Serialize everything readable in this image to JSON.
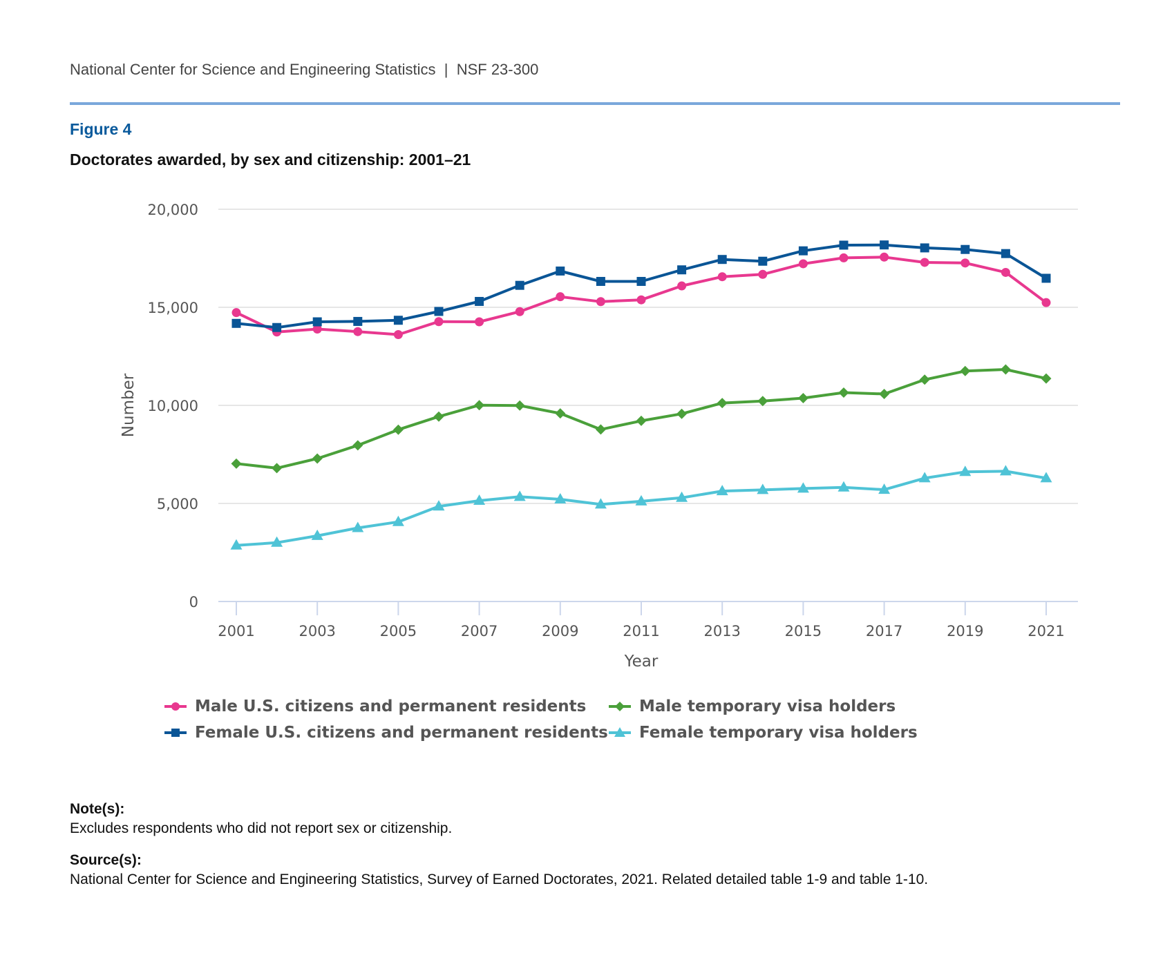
{
  "header": {
    "org": "National Center for Science and Engineering Statistics",
    "separator": "|",
    "report": "NSF 23-300"
  },
  "figure": {
    "label": "Figure 4",
    "title": "Doctorates awarded, by sex and citizenship: 2001–21"
  },
  "colors": {
    "rule": "#7aa7db",
    "figure_label": "#0a5a9c",
    "grid": "#e6e6e6",
    "axis": "#ccd6eb"
  },
  "chart_data": {
    "type": "line",
    "title": "Doctorates awarded, by sex and citizenship: 2001–21",
    "xlabel": "Year",
    "ylabel": "Number",
    "ylim": [
      0,
      20000
    ],
    "yticks": [
      0,
      5000,
      10000,
      15000,
      20000
    ],
    "ytick_labels": [
      "0",
      "5,000",
      "10,000",
      "15,000",
      "20,000"
    ],
    "xlim": [
      2001,
      2021
    ],
    "xticks": [
      2001,
      2003,
      2005,
      2007,
      2009,
      2011,
      2013,
      2015,
      2017,
      2019,
      2021
    ],
    "xtick_labels": [
      "2001",
      "2003",
      "2005",
      "2007",
      "2009",
      "2011",
      "2013",
      "2015",
      "2017",
      "2019",
      "2021"
    ],
    "grid": true,
    "legend_position": "bottom",
    "x": [
      2001,
      2002,
      2003,
      2004,
      2005,
      2006,
      2007,
      2008,
      2009,
      2010,
      2011,
      2012,
      2013,
      2014,
      2015,
      2016,
      2017,
      2018,
      2019,
      2020,
      2021
    ],
    "series": [
      {
        "name": "Male U.S. citizens and permanent residents",
        "color": "#e8388f",
        "marker": "circle",
        "values": [
          14730,
          13740,
          13890,
          13760,
          13610,
          14270,
          14260,
          14780,
          15540,
          15290,
          15380,
          16090,
          16560,
          16680,
          17220,
          17520,
          17560,
          17290,
          17260,
          16780,
          15240
        ]
      },
      {
        "name": "Female U.S. citizens and permanent residents",
        "color": "#0a5596",
        "marker": "square",
        "values": [
          14180,
          13970,
          14260,
          14280,
          14340,
          14790,
          15300,
          16120,
          16850,
          16320,
          16320,
          16910,
          17440,
          17350,
          17880,
          18170,
          18180,
          18030,
          17950,
          17740,
          16480
        ]
      },
      {
        "name": "Male temporary visa holders",
        "color": "#4aa03a",
        "marker": "diamond",
        "values": [
          7030,
          6800,
          7290,
          7960,
          8760,
          9430,
          10010,
          9990,
          9590,
          8770,
          9210,
          9570,
          10120,
          10220,
          10370,
          10650,
          10580,
          11310,
          11750,
          11830,
          11370
        ]
      },
      {
        "name": "Female temporary visa holders",
        "color": "#4fc3d6",
        "marker": "triangle",
        "values": [
          2860,
          3000,
          3350,
          3750,
          4060,
          4850,
          5140,
          5340,
          5210,
          4950,
          5110,
          5290,
          5630,
          5690,
          5760,
          5820,
          5700,
          6290,
          6610,
          6640,
          6290
        ]
      }
    ]
  },
  "notes": {
    "note_heading": "Note(s):",
    "note_text": "Excludes respondents who did not report sex or citizenship.",
    "source_heading": "Source(s):",
    "source_text": "National Center for Science and Engineering Statistics, Survey of Earned Doctorates, 2021. Related detailed table 1-9 and table 1-10."
  }
}
